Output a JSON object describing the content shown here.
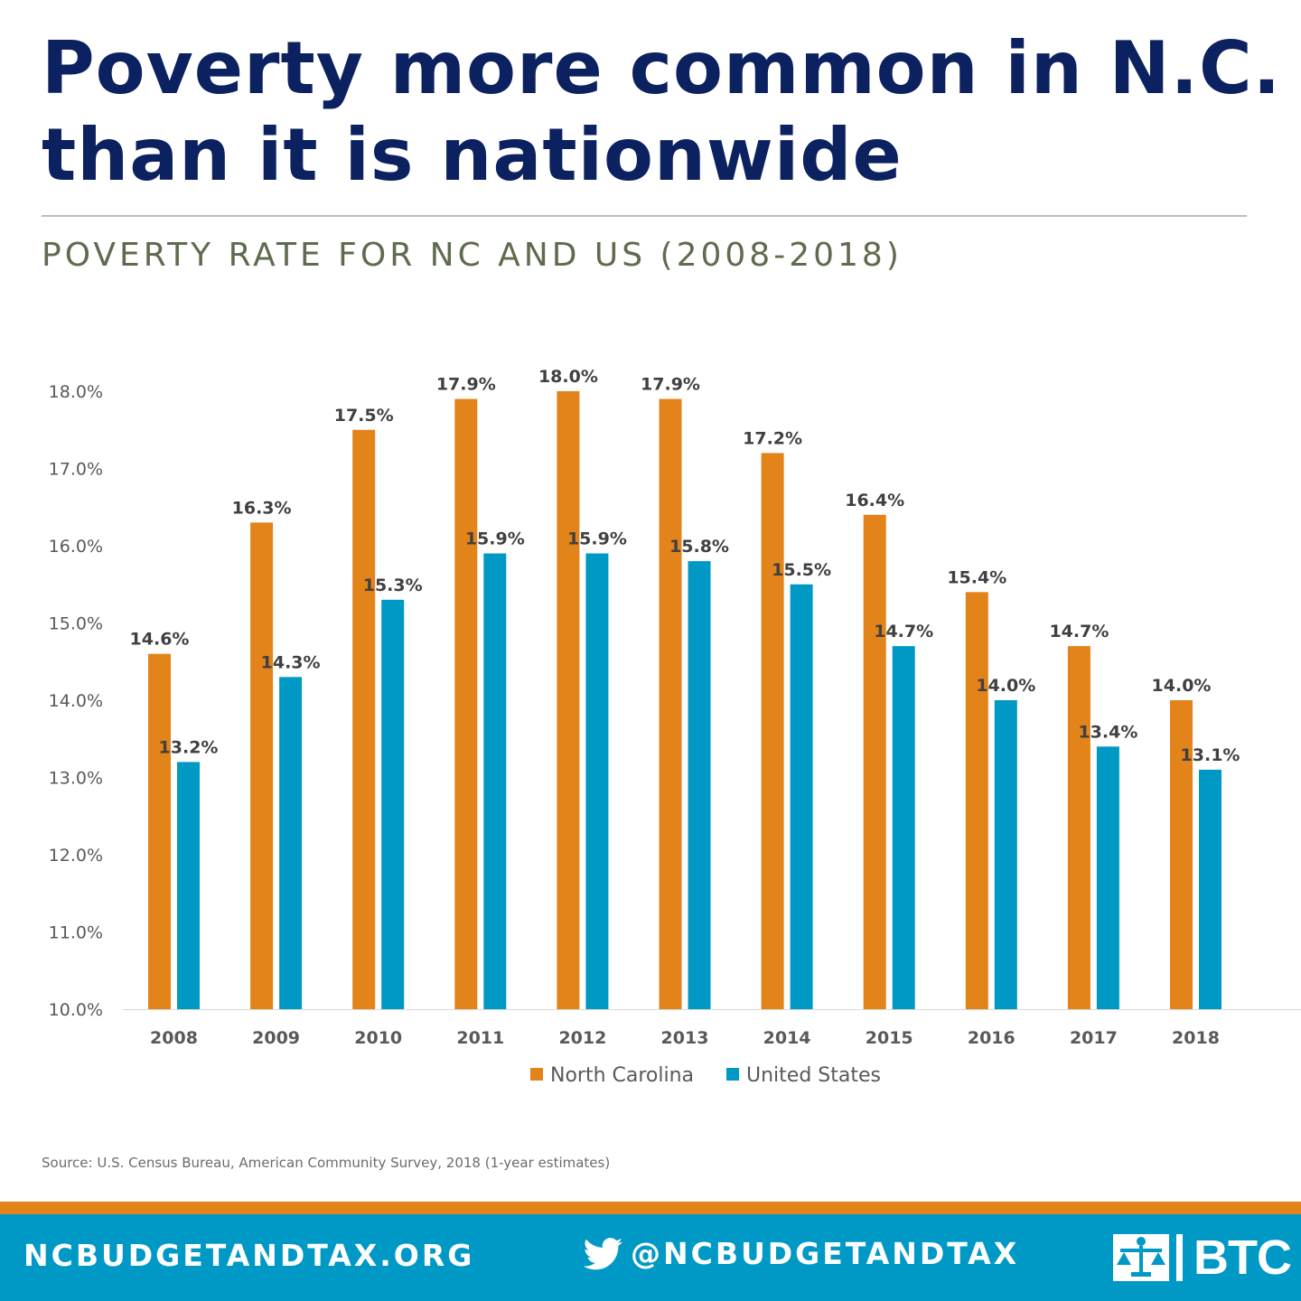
{
  "header": {
    "title_line1": "Poverty more common in N.C.",
    "title_line2": "than it is nationwide",
    "subtitle": "POVERTY RATE FOR NC AND US (2008-2018)"
  },
  "chart_data": {
    "type": "bar",
    "title": "POVERTY RATE FOR NC AND US (2008-2018)",
    "xlabel": "",
    "ylabel": "",
    "ylim": [
      10,
      18
    ],
    "yticks": [
      "18.0%",
      "17.0%",
      "16.0%",
      "15.0%",
      "14.0%",
      "13.0%",
      "12.0%",
      "11.0%",
      "10.0%"
    ],
    "ytick_values": [
      18,
      17,
      16,
      15,
      14,
      13,
      12,
      11,
      10
    ],
    "categories": [
      "2008",
      "2009",
      "2010",
      "2011",
      "2012",
      "2013",
      "2014",
      "2015",
      "2016",
      "2017",
      "2018"
    ],
    "series": [
      {
        "name": "North Carolina",
        "color": "#e2841a",
        "values": [
          14.6,
          16.3,
          17.5,
          17.9,
          18.0,
          17.9,
          17.2,
          16.4,
          15.4,
          14.7,
          14.0
        ],
        "labels": [
          "14.6%",
          "16.3%",
          "17.5%",
          "17.9%",
          "18.0%",
          "17.9%",
          "17.2%",
          "16.4%",
          "15.4%",
          "14.7%",
          "14.0%"
        ]
      },
      {
        "name": "United States",
        "color": "#0099c6",
        "values": [
          13.2,
          14.3,
          15.3,
          15.9,
          15.9,
          15.8,
          15.5,
          14.7,
          14.0,
          13.4,
          13.1
        ],
        "labels": [
          "13.2%",
          "14.3%",
          "15.3%",
          "15.9%",
          "15.9%",
          "15.8%",
          "15.5%",
          "14.7%",
          "14.0%",
          "13.4%",
          "13.1%"
        ]
      }
    ],
    "grid": false,
    "legend": "bottom"
  },
  "source": "Source: U.S. Census Bureau, American Community Survey, 2018 (1-year estimates)",
  "footer": {
    "site": "NCBUDGETANDTAX.ORG",
    "social_icon": "twitter-bird-icon",
    "social_handle": "@NCBUDGETANDTAX",
    "logo_icon": "btc-scales-icon",
    "logo_text": "BTC",
    "accent_orange": "#e2841a",
    "accent_blue": "#0099c6"
  }
}
